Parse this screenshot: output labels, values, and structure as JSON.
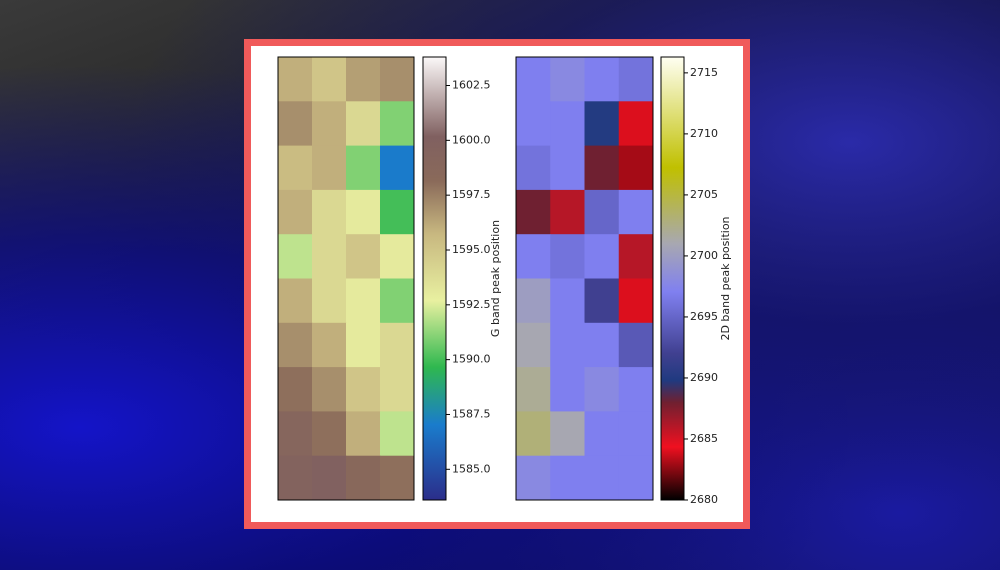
{
  "chart_data": [
    {
      "type": "heatmap",
      "z": [
        [
          1596,
          1595,
          1596.5,
          1597
        ],
        [
          1597,
          1596,
          1594,
          1591
        ],
        [
          1595.5,
          1596,
          1591,
          1587
        ],
        [
          1596,
          1594,
          1593,
          1590
        ],
        [
          1592,
          1594,
          1595,
          1593
        ],
        [
          1596,
          1594,
          1593,
          1591
        ],
        [
          1597,
          1596,
          1593,
          1594
        ],
        [
          1598,
          1597,
          1595,
          1594
        ],
        [
          1599,
          1598,
          1596,
          1592
        ],
        [
          1599.5,
          1600,
          1598.5,
          1598
        ]
      ],
      "clim": [
        1583.6,
        1603.8
      ],
      "cticks": [
        {
          "value": 1585,
          "label": "1585.0"
        },
        1587.5,
        {
          "value": 1590,
          "label": "1590.0"
        },
        1592.5,
        {
          "value": 1595,
          "label": "1595.0"
        },
        1597.5,
        {
          "value": 1600,
          "label": "1600.0"
        },
        1602.5
      ],
      "colorbar_label": "G band peak position",
      "colormap": [
        [
          0,
          "#2b2d8a"
        ],
        [
          0.17,
          "#1a7ccc"
        ],
        [
          0.3,
          "#2fb84f"
        ],
        [
          0.45,
          "#e8f0a0"
        ],
        [
          0.6,
          "#c8b880"
        ],
        [
          0.72,
          "#8a6a5a"
        ],
        [
          0.82,
          "#806060"
        ],
        [
          1,
          "#fbf8f8"
        ]
      ]
    },
    {
      "type": "heatmap",
      "z": [
        [
          2697,
          2698,
          2697,
          2696
        ],
        [
          2697,
          2697,
          2690,
          2684
        ],
        [
          2696,
          2697,
          2688,
          2683
        ],
        [
          2688,
          2686,
          2695,
          2697
        ],
        [
          2697,
          2696,
          2697,
          2686
        ],
        [
          2700,
          2697,
          2692,
          2684
        ],
        [
          2701,
          2697,
          2697,
          2694
        ],
        [
          2702,
          2697,
          2698,
          2697
        ],
        [
          2703,
          2701,
          2697,
          2697
        ],
        [
          2698,
          2697,
          2697,
          2697
        ]
      ],
      "clim": [
        2680,
        2716.3
      ],
      "cticks": [
        2680,
        2685,
        2690,
        2695,
        2700,
        2705,
        2710,
        2715
      ],
      "colorbar_label": "2D band peak position",
      "colormap": [
        [
          0,
          "#000000"
        ],
        [
          0.12,
          "#f01020"
        ],
        [
          0.22,
          "#702030"
        ],
        [
          0.27,
          "#203a80"
        ],
        [
          0.33,
          "#404090"
        ],
        [
          0.47,
          "#8080f0"
        ],
        [
          0.58,
          "#a8a8b0"
        ],
        [
          0.75,
          "#c0c000"
        ],
        [
          1,
          "#fffff2"
        ]
      ]
    }
  ]
}
